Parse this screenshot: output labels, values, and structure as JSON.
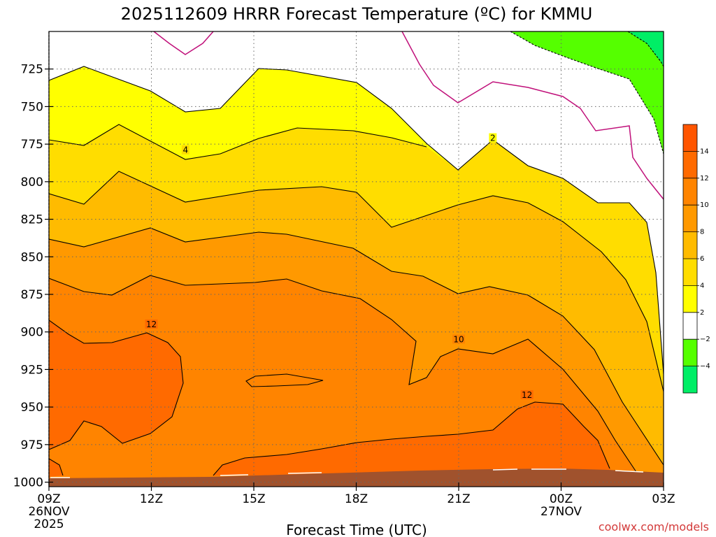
{
  "chart_data": {
    "type": "contour",
    "title": "2025112609 HRRR Forecast Temperature (ºC) for KMMU",
    "xlabel": "Forecast Time (UTC)",
    "ylabel": "",
    "x_ticks": [
      {
        "hour": 0,
        "label": "09Z",
        "sub1": "26NOV",
        "sub2": "2025"
      },
      {
        "hour": 3,
        "label": "12Z",
        "sub1": "",
        "sub2": ""
      },
      {
        "hour": 6,
        "label": "15Z",
        "sub1": "",
        "sub2": ""
      },
      {
        "hour": 9,
        "label": "18Z",
        "sub1": "",
        "sub2": ""
      },
      {
        "hour": 12,
        "label": "21Z",
        "sub1": "",
        "sub2": ""
      },
      {
        "hour": 15,
        "label": "00Z",
        "sub1": "27NOV",
        "sub2": ""
      },
      {
        "hour": 18,
        "label": "03Z",
        "sub1": "",
        "sub2": ""
      }
    ],
    "xlim": [
      0,
      18
    ],
    "y_ticks": [
      725,
      750,
      775,
      800,
      825,
      850,
      875,
      900,
      925,
      950,
      975,
      1000
    ],
    "ylim": [
      1003,
      700
    ],
    "colorbar": {
      "levels": [
        -4,
        -2,
        2,
        4,
        6,
        8,
        10,
        12,
        14
      ],
      "labels": [
        "−4",
        "−2",
        "2",
        "4",
        "6",
        "8",
        "10",
        "12",
        "14"
      ],
      "colors": [
        "#00ee66",
        "#55ff00",
        "#ffffff",
        "#ffff00",
        "#ffdd00",
        "#ffbb00",
        "#ff9900",
        "#ff8400",
        "#ff6a00",
        "#ff5500"
      ]
    },
    "contour_labels": [
      {
        "text": "12",
        "hour": 3.0,
        "pres": 895
      },
      {
        "text": "4",
        "hour": 4.0,
        "pres": 779
      },
      {
        "text": "2",
        "hour": 13.0,
        "pres": 771
      },
      {
        "text": "10",
        "hour": 12.0,
        "pres": 905
      },
      {
        "text": "12",
        "hour": 14.0,
        "pres": 942
      }
    ],
    "credit": "coolwx.com/models"
  }
}
